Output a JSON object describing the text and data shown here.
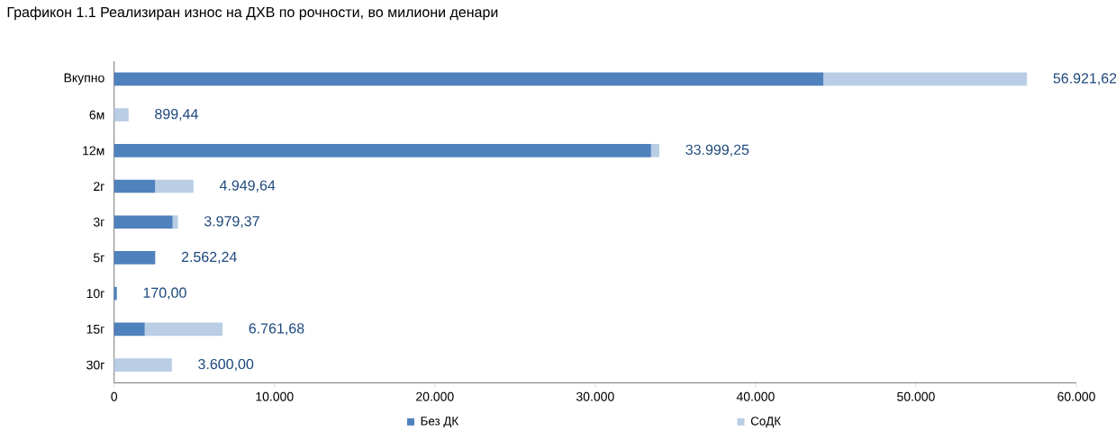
{
  "chart_data": {
    "type": "bar",
    "orientation": "horizontal",
    "stacked": true,
    "title": "Графикон 1.1 Реализиран износ на ДХВ по рочности, во милиони денари",
    "categories": [
      "Вкупно",
      "6м",
      "12м",
      "2г",
      "3г",
      "5г",
      "10г",
      "15г",
      "30г"
    ],
    "series": [
      {
        "name": "Без ДК",
        "color": "#4f81bd",
        "values": [
          44225,
          0,
          33480,
          2556,
          3648,
          2562.24,
          170,
          1909,
          0
        ]
      },
      {
        "name": "СоДК",
        "color": "#b9cde5",
        "values": [
          12696.62,
          899.44,
          519.25,
          2393.64,
          331.37,
          0,
          0,
          4852.68,
          3600
        ]
      }
    ],
    "totals": [
      "56.921,62",
      "899,44",
      "33.999,25",
      "4.949,64",
      "3.979,37",
      "2.562,24",
      "170,00",
      "6.761,68",
      "3.600,00"
    ],
    "xlim": [
      0,
      60000
    ],
    "xticks": [
      0,
      {
        "value": 10000,
        "label": "10.000"
      },
      {
        "value": 20000,
        "label": "20.000"
      },
      {
        "value": 30000,
        "label": "30.000"
      },
      {
        "value": 40000,
        "label": "40.000"
      },
      {
        "value": 50000,
        "label": "50.000"
      },
      {
        "value": 60000,
        "label": "60.000"
      }
    ],
    "grid": false,
    "legend": "bottom"
  }
}
